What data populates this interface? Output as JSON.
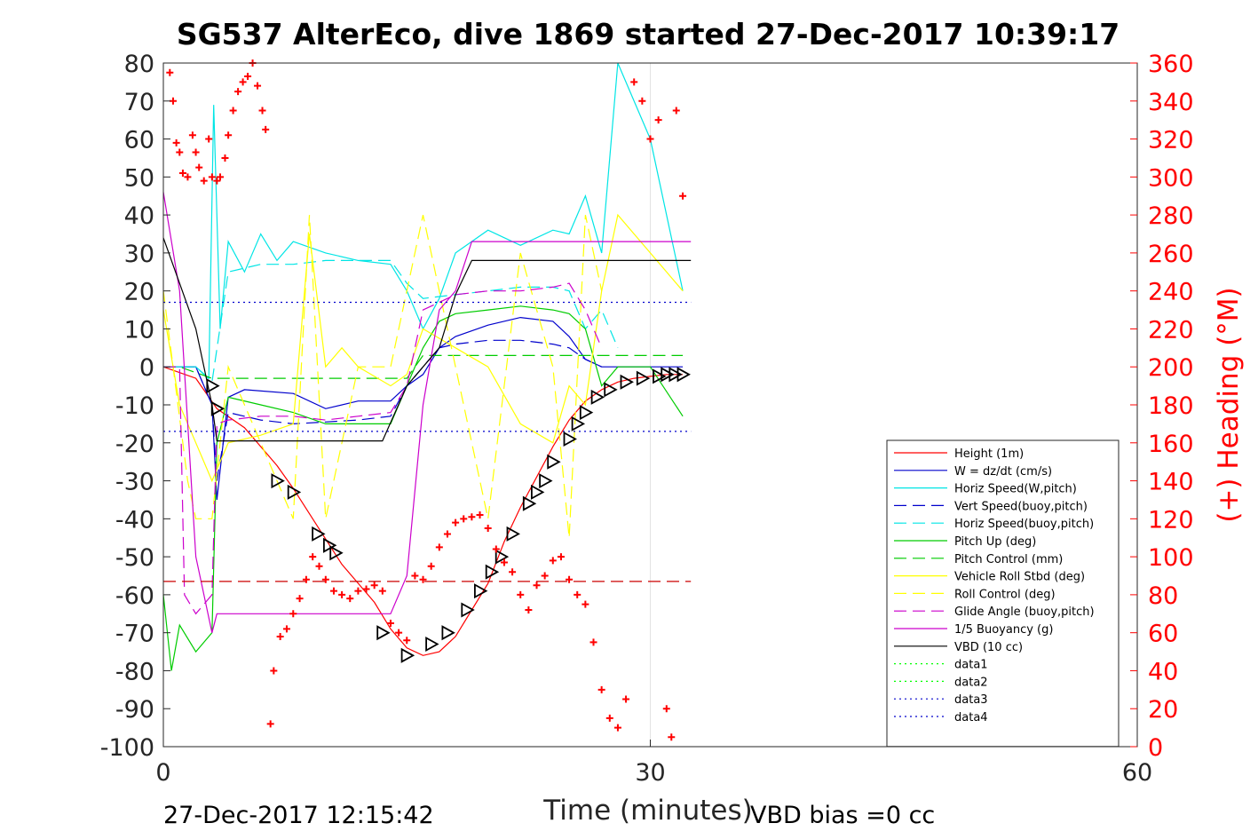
{
  "chart_data": {
    "type": "line",
    "title": "SG537 AlterEco, dive 1869 started 27-Dec-2017 10:39:17",
    "xlabel": "Time (minutes)",
    "ylabel": "",
    "y2label": "(+) Heading (°M)",
    "xlim": [
      0,
      60
    ],
    "ylim": [
      -100,
      80
    ],
    "y2lim": [
      0,
      360
    ],
    "x_ticks": [
      "0",
      "30",
      "60"
    ],
    "y_ticks": [
      "80",
      "70",
      "60",
      "50",
      "40",
      "30",
      "20",
      "10",
      "0",
      "-10",
      "-20",
      "-30",
      "-40",
      "-50",
      "-60",
      "-70",
      "-80",
      "-90",
      "-100"
    ],
    "y2_ticks": [
      "360",
      "340",
      "320",
      "300",
      "280",
      "260",
      "240",
      "220",
      "200",
      "180",
      "160",
      "140",
      "120",
      "100",
      "80",
      "60",
      "40",
      "20",
      "0"
    ],
    "grid": "vertical at x=30",
    "legend_position": "lower-right",
    "series": [
      {
        "name": "Height (1m)",
        "color": "#ff0000",
        "style": "solid",
        "x": [
          0,
          2,
          3.3,
          5,
          7,
          8,
          9.5,
          11,
          13,
          14,
          15,
          16,
          17,
          18,
          19,
          20,
          21,
          22,
          23,
          24,
          25,
          26,
          27,
          28,
          29,
          30,
          31,
          32
        ],
        "y": [
          0,
          -3,
          -11,
          -16,
          -26,
          -32,
          -42,
          -52,
          -62,
          -69,
          -74,
          -76,
          -75,
          -71,
          -64,
          -57,
          -46,
          -37,
          -29,
          -21,
          -14,
          -9,
          -6,
          -4,
          -3,
          -2.5,
          -2,
          -2
        ]
      },
      {
        "name": "W = dz/dt (cm/s)",
        "color": "#0000cc",
        "style": "solid",
        "x": [
          0,
          2,
          3,
          3.3,
          4,
          5,
          8,
          10,
          12,
          14,
          15,
          16,
          17,
          18,
          20,
          22,
          24,
          25,
          26,
          27,
          28,
          30,
          32
        ],
        "y": [
          0,
          0,
          -10,
          -35,
          -8,
          -6,
          -7,
          -11,
          -9,
          -9,
          -5,
          -2,
          5,
          8,
          11,
          13,
          12,
          8,
          2,
          0,
          0,
          0,
          0
        ]
      },
      {
        "name": "Horiz Speed(W,pitch)",
        "color": "#00e5e5",
        "style": "solid",
        "x": [
          0,
          2,
          2.8,
          3.1,
          3.5,
          4,
          5,
          6,
          7,
          8,
          10,
          12,
          14,
          15,
          16,
          17,
          18,
          20,
          22,
          24,
          25,
          26,
          27,
          28,
          30,
          32
        ],
        "y": [
          0,
          0,
          -3,
          69,
          10,
          33,
          25,
          35,
          28,
          33,
          30,
          28,
          27,
          20,
          10,
          18,
          30,
          36,
          32,
          36,
          35,
          45,
          30,
          80,
          60,
          20
        ]
      },
      {
        "name": "Vert Speed(buoy,pitch)",
        "color": "#0000cc",
        "style": "dashed",
        "x": [
          0,
          2,
          3,
          3.3,
          4,
          6,
          8,
          12,
          14,
          15,
          16,
          17,
          18,
          20,
          22,
          24,
          25,
          26,
          27
        ],
        "y": [
          0,
          0,
          -10,
          -30,
          -12,
          -14,
          -15,
          -14,
          -13,
          -5,
          0,
          5,
          6,
          7,
          7,
          6,
          5,
          2,
          0
        ]
      },
      {
        "name": "Horiz Speed(buoy,pitch)",
        "color": "#00e5e5",
        "style": "dashed",
        "x": [
          0,
          2,
          3,
          4,
          6,
          8,
          10,
          12,
          14,
          15,
          16,
          18,
          20,
          22,
          24,
          25,
          26,
          27,
          28
        ],
        "y": [
          0,
          0,
          -4,
          25,
          27,
          27,
          28,
          28,
          28,
          22,
          18,
          19,
          20,
          21,
          21,
          20,
          10,
          15,
          5
        ]
      },
      {
        "name": "Pitch Up (deg)",
        "color": "#00cc00",
        "style": "solid",
        "x": [
          0,
          0.5,
          1,
          2,
          3,
          3.3,
          4,
          6,
          8,
          10,
          12,
          14,
          15,
          16,
          17,
          18,
          20,
          22,
          24,
          25,
          26,
          27,
          28,
          30,
          32
        ],
        "y": [
          -60,
          -80,
          -68,
          -75,
          -70,
          -20,
          -8,
          -10,
          -12,
          -15,
          -15,
          -15,
          -5,
          5,
          12,
          14,
          15,
          16,
          15,
          14,
          10,
          -5,
          0,
          0,
          -13
        ]
      },
      {
        "name": "Pitch Control (mm)",
        "color": "#00cc00",
        "style": "dashed",
        "x": [
          0,
          1,
          3,
          3.2,
          14,
          15,
          16,
          17,
          25,
          26,
          32
        ],
        "y": [
          0,
          0,
          -3,
          -3,
          -3,
          -3,
          3,
          3,
          3,
          3,
          3
        ]
      },
      {
        "name": "Vehicle Roll Stbd (deg)",
        "color": "#ffff00",
        "style": "solid",
        "x": [
          0,
          1,
          2,
          3,
          4,
          6,
          8,
          9,
          10,
          11,
          12,
          14,
          15,
          16,
          18,
          20,
          22,
          24,
          25,
          26,
          27,
          28,
          30,
          32
        ],
        "y": [
          15,
          -10,
          -20,
          -30,
          -20,
          -18,
          -15,
          35,
          0,
          5,
          0,
          -5,
          -2,
          10,
          5,
          0,
          -15,
          -20,
          -5,
          -10,
          20,
          40,
          30,
          20
        ]
      },
      {
        "name": "Roll Control (deg)",
        "color": "#ffff00",
        "style": "dashed",
        "x": [
          0,
          1.5,
          2,
          3,
          4,
          8,
          9,
          10,
          12,
          14,
          16,
          18,
          20,
          22,
          24,
          25,
          26,
          27
        ],
        "y": [
          20,
          -30,
          -40,
          -40,
          0,
          -40,
          40,
          -40,
          0,
          0,
          40,
          0,
          -40,
          30,
          0,
          -45,
          40,
          20
        ]
      },
      {
        "name": "Glide Angle (buoy,pitch)",
        "color": "#cc00cc",
        "style": "dashed",
        "x": [
          0,
          1,
          1.3,
          2,
          3,
          3.3,
          4,
          6,
          8,
          10,
          12,
          14,
          15,
          16,
          18,
          20,
          22,
          24,
          25,
          26,
          27
        ],
        "y": [
          0,
          0,
          -60,
          -65,
          -60,
          -15,
          -14,
          -13,
          -13,
          -14,
          -13,
          -12,
          -5,
          15,
          19,
          20,
          20,
          21,
          22,
          15,
          5
        ]
      },
      {
        "name": "1/5 Buoyancy (g)",
        "color": "#cc00cc",
        "style": "solid",
        "x": [
          0,
          1,
          2,
          3,
          3.3,
          14,
          15,
          16,
          17,
          18,
          19,
          25,
          32.5
        ],
        "y": [
          46,
          20,
          -50,
          -70,
          -65,
          -65,
          -55,
          -10,
          15,
          20,
          33,
          33,
          33
        ]
      },
      {
        "name": "VBD (10 cc)",
        "color": "#000000",
        "style": "solid",
        "x": [
          0,
          2,
          3,
          3.3,
          13.5,
          15,
          16,
          17,
          18,
          19,
          32.5
        ],
        "y": [
          34,
          10,
          -10,
          -19.5,
          -19.5,
          -5,
          0,
          5,
          19,
          28,
          28
        ]
      },
      {
        "name": "data1",
        "color": "#00ff00",
        "style": "dotted",
        "x": [],
        "y": []
      },
      {
        "name": "data2",
        "color": "#00ff00",
        "style": "dotted",
        "x": [],
        "y": []
      },
      {
        "name": "data3",
        "color": "#0000cc",
        "style": "dotted",
        "x": [
          0,
          32.5
        ],
        "y": [
          17,
          17
        ]
      },
      {
        "name": "data4",
        "color": "#0000cc",
        "style": "dotted",
        "x": [
          0,
          32.5
        ],
        "y": [
          -17,
          -17
        ]
      }
    ],
    "extra_lines": [
      {
        "color": "#cc0000",
        "style": "dashed",
        "x": [
          0,
          32.5
        ],
        "y": [
          -56.5,
          -56.5
        ]
      }
    ],
    "triangle_markers": {
      "color": "#000000",
      "x": [
        3,
        3.3,
        7,
        8,
        9.5,
        10.2,
        10.6,
        13.5,
        15,
        16.5,
        17.5,
        18.7,
        19.5,
        20.2,
        20.8,
        21.5,
        22.5,
        23,
        23.5,
        24,
        25,
        25.5,
        26,
        26.7,
        27.5,
        28.5,
        29.5,
        30.5,
        31,
        31.5,
        32
      ],
      "y": [
        -5,
        -11,
        -30,
        -33,
        -44,
        -47,
        -49,
        -70,
        -76,
        -73,
        -70,
        -64,
        -59,
        -54,
        -50,
        -44,
        -36,
        -33,
        -30,
        -25,
        -19,
        -15,
        -12,
        -8,
        -6,
        -4,
        -3,
        -2.5,
        -2,
        -2,
        -2
      ]
    },
    "heading_markers": {
      "color": "#ff0000",
      "axis": "right",
      "x": [
        0.4,
        0.6,
        0.8,
        1.0,
        1.2,
        1.5,
        1.8,
        2.0,
        2.2,
        2.5,
        2.8,
        3.0,
        3.3,
        3.5,
        3.8,
        4.0,
        4.3,
        4.6,
        4.9,
        5.2,
        5.5,
        5.8,
        6.1,
        6.3,
        6.6,
        6.8,
        7.2,
        7.6,
        8.0,
        8.4,
        8.8,
        9.2,
        9.6,
        10.0,
        10.5,
        11.0,
        11.5,
        12.0,
        12.5,
        13.0,
        13.5,
        14.0,
        14.5,
        15.0,
        15.5,
        16.0,
        16.5,
        17.0,
        17.5,
        18.0,
        18.5,
        19.0,
        19.5,
        20.0,
        20.5,
        21.0,
        21.5,
        22.0,
        22.5,
        23.0,
        23.5,
        24.0,
        24.5,
        25.0,
        25.5,
        26.0,
        26.5,
        27.0,
        27.5,
        28.0,
        28.5,
        29.0,
        29.5,
        30.0,
        30.5,
        31.0,
        31.3,
        31.6,
        32.0
      ],
      "y": [
        355,
        340,
        318,
        313,
        302,
        300,
        322,
        313,
        305,
        298,
        320,
        300,
        298,
        300,
        310,
        322,
        335,
        345,
        350,
        353,
        360,
        348,
        335,
        325,
        12,
        40,
        58,
        62,
        70,
        78,
        88,
        100,
        95,
        88,
        82,
        80,
        78,
        82,
        83,
        85,
        82,
        65,
        60,
        56,
        90,
        88,
        95,
        105,
        112,
        118,
        120,
        121,
        122,
        115,
        104,
        97,
        92,
        80,
        72,
        85,
        90,
        98,
        100,
        88,
        80,
        75,
        55,
        30,
        15,
        10,
        25,
        350,
        340,
        320,
        330,
        20,
        5,
        335,
        290
      ]
    }
  },
  "footer": {
    "timestamp": "27-Dec-2017 12:15:42",
    "vbd_bias": "VBD bias =0 cc"
  },
  "colors": {
    "axis": "#262626",
    "right_axis": "#ff0000",
    "heading_marker": "#ff0000"
  }
}
